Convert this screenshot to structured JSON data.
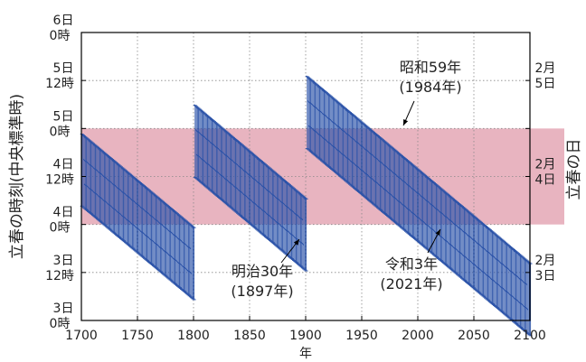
{
  "chart_data": {
    "type": "line",
    "title": "",
    "xlabel": "年",
    "ylabel": "立春の時刻(中央標準時)",
    "y2label": "立春の日",
    "xlim": [
      1700,
      2100
    ],
    "ylim_hours": [
      72,
      144
    ],
    "x_ticks": [
      1700,
      1750,
      1800,
      1850,
      1900,
      1950,
      2000,
      2050,
      2100
    ],
    "y_ticks": [
      {
        "value": 144,
        "line1": "6日",
        "line2": "0時"
      },
      {
        "value": 132,
        "line1": "5日",
        "line2": "12時"
      },
      {
        "value": 120,
        "line1": "5日",
        "line2": "0時"
      },
      {
        "value": 108,
        "line1": "4日",
        "line2": "12時"
      },
      {
        "value": 96,
        "line1": "4日",
        "line2": "0時"
      },
      {
        "value": 84,
        "line1": "3日",
        "line2": "12時"
      },
      {
        "value": 72,
        "line1": "3日",
        "line2": "0時"
      }
    ],
    "y2_labels": [
      {
        "value": 132,
        "line1": "2月",
        "line2": "5日"
      },
      {
        "value": 108,
        "line1": "2月",
        "line2": "4日"
      },
      {
        "value": 84,
        "line1": "2月",
        "line2": "3日"
      }
    ],
    "highlight_band": {
      "from": 96,
      "to": 120,
      "color": "#e8b4c0"
    },
    "grid": true,
    "series_color": "#2a52a8",
    "sawtooth_segments": [
      {
        "start_year": 1700,
        "end_year": 1800,
        "start_hi": 118.6,
        "end_hi": 95.2,
        "start_lo": 100.6,
        "end_lo": 77.2
      },
      {
        "start_year": 1800,
        "end_year": 1900,
        "start_hi": 126.0,
        "end_hi": 102.4,
        "start_lo": 108.0,
        "end_lo": 84.4
      },
      {
        "start_year": 1900,
        "end_year": 2100,
        "start_hi": 133.2,
        "end_hi": 86.2,
        "start_lo": 115.2,
        "end_lo": 68.2
      }
    ],
    "annotations": [
      {
        "line1": "昭和59年",
        "line2": "(1984年)",
        "year": 1984
      },
      {
        "line1": "明治30年",
        "line2": "(1897年)",
        "year": 1897
      },
      {
        "line1": "令和3年",
        "line2": "(2021年)",
        "year": 2021
      }
    ]
  }
}
